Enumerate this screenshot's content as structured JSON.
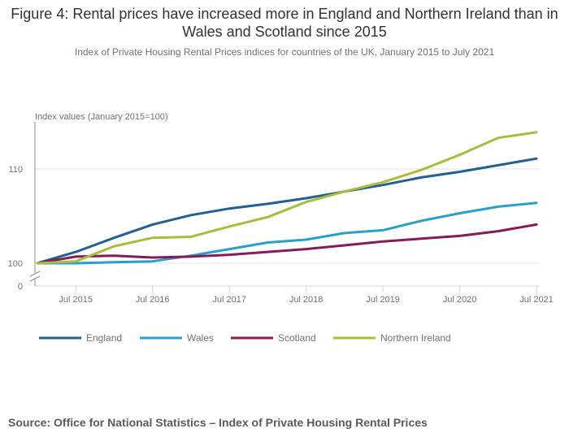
{
  "title": "Figure 4: Rental prices have increased more in England and Northern Ireland than in Wales and Scotland since 2015",
  "subtitle": "Index of Private Housing Rental Prices indices for countries of the UK, January 2015 to July 2021",
  "source": "Source: Office for National Statistics – Index of Private Housing Rental Prices",
  "chart_data": {
    "type": "line",
    "title": "Figure 4: Rental prices have increased more in England and Northern Ireland than in Wales and Scotland since 2015",
    "subtitle": "Index of Private Housing Rental Prices indices for countries of the UK, January 2015 to July 2021",
    "ylabel": "Index values (January 2015=100)",
    "xlabel": "",
    "ylim": [
      100,
      115
    ],
    "y_break": true,
    "y_ticks": [
      0,
      100,
      110
    ],
    "y_tick_labels": [
      "0",
      "100",
      "110"
    ],
    "x_tick_labels": [
      "Jul 2015",
      "Jul 2016",
      "Jul 2017",
      "Jul 2018",
      "Jul 2019",
      "Jul 2020",
      "Jul 2021"
    ],
    "x_tick_months": [
      6,
      18,
      30,
      42,
      54,
      66,
      78
    ],
    "x_start": "Jan 2015",
    "x_end": "Jul 2021",
    "num_months": 79,
    "grid": true,
    "legend_position": "bottom",
    "anchor_months": [
      0,
      6,
      12,
      18,
      24,
      30,
      36,
      42,
      48,
      54,
      60,
      66,
      72,
      78
    ],
    "series": [
      {
        "name": "England",
        "color": "#206095",
        "values": [
          100,
          101.2,
          102.7,
          104.1,
          105.1,
          105.8,
          106.3,
          106.9,
          107.6,
          108.3,
          109.1,
          109.7,
          110.4,
          111.1
        ]
      },
      {
        "name": "Wales",
        "color": "#27a0cc",
        "values": [
          100,
          100.0,
          100.1,
          100.2,
          100.8,
          101.5,
          102.2,
          102.5,
          103.2,
          103.5,
          104.5,
          105.3,
          106.0,
          106.4
        ]
      },
      {
        "name": "Scotland",
        "color": "#871a5b",
        "values": [
          100,
          100.7,
          100.8,
          100.6,
          100.7,
          100.9,
          101.2,
          101.5,
          101.9,
          102.3,
          102.6,
          102.9,
          103.4,
          104.1
        ]
      },
      {
        "name": "Northern Ireland",
        "color": "#a8bd3a",
        "values": [
          100,
          100.2,
          101.8,
          102.7,
          102.8,
          103.9,
          104.9,
          106.5,
          107.6,
          108.6,
          109.9,
          111.5,
          113.3,
          113.9
        ]
      }
    ]
  }
}
